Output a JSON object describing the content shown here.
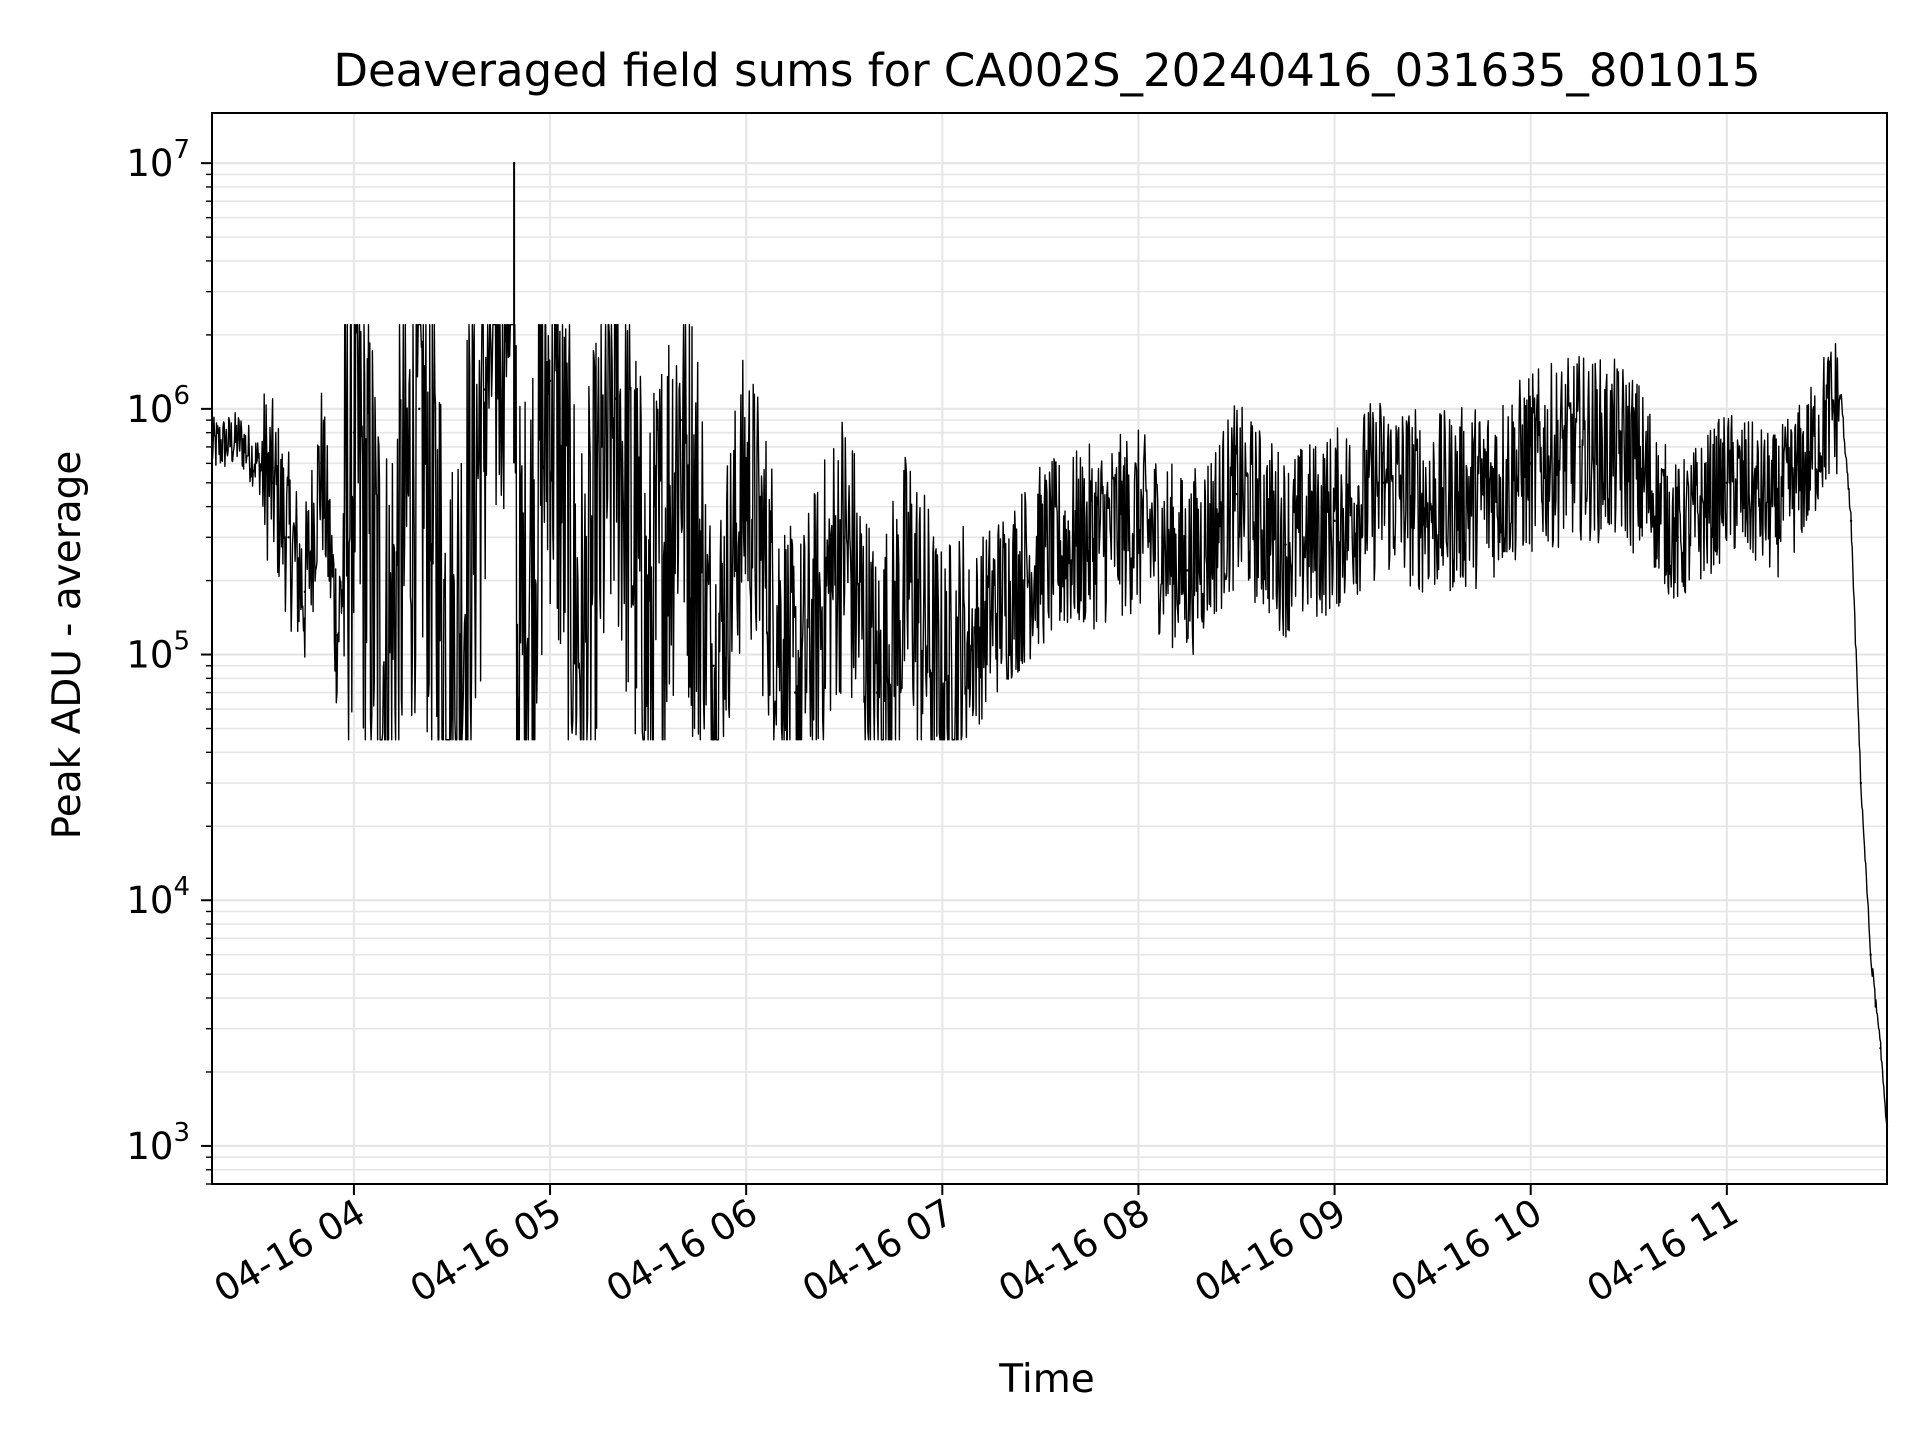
{
  "chart_data": {
    "type": "line",
    "title": "Deaveraged field sums for CA002S_20240416_031635_801015",
    "xlabel": "Time",
    "ylabel": "Peak ADU - average",
    "x_scale": "time",
    "y_scale": "log",
    "xlim": [
      "2024-04-16 03:16:35",
      "2024-04-16 11:49:00"
    ],
    "ylim": [
      700,
      16000000
    ],
    "x_ticks": [
      {
        "time": "2024-04-16 04:00:00",
        "label": "04-16 04"
      },
      {
        "time": "2024-04-16 05:00:00",
        "label": "04-16 05"
      },
      {
        "time": "2024-04-16 06:00:00",
        "label": "04-16 06"
      },
      {
        "time": "2024-04-16 07:00:00",
        "label": "04-16 07"
      },
      {
        "time": "2024-04-16 08:00:00",
        "label": "04-16 08"
      },
      {
        "time": "2024-04-16 09:00:00",
        "label": "04-16 09"
      },
      {
        "time": "2024-04-16 10:00:00",
        "label": "04-16 10"
      },
      {
        "time": "2024-04-16 11:00:00",
        "label": "04-16 11"
      }
    ],
    "y_ticks": [
      {
        "value": 1000,
        "base": "10",
        "exp": "3"
      },
      {
        "value": 10000,
        "base": "10",
        "exp": "4"
      },
      {
        "value": 100000,
        "base": "10",
        "exp": "5"
      },
      {
        "value": 1000000,
        "base": "10",
        "exp": "6"
      },
      {
        "value": 10000000,
        "base": "10",
        "exp": "7"
      }
    ],
    "grid": true,
    "grid_minor": true,
    "line_color": "#000000",
    "grid_color": "#e6e6e6",
    "series": [
      {
        "x": [
          "2024-04-16 03:16:35",
          "2024-04-16 03:25:00",
          "2024-04-16 03:35:00",
          "2024-04-16 03:40:00",
          "2024-04-16 03:45:00",
          "2024-04-16 03:50:00",
          "2024-04-16 03:55:00",
          "2024-04-16 04:00:00",
          "2024-04-16 04:10:00",
          "2024-04-16 04:20:00",
          "2024-04-16 04:30:00",
          "2024-04-16 04:40:00",
          "2024-04-16 04:49:00",
          "2024-04-16 04:50:00",
          "2024-04-16 05:00:00",
          "2024-04-16 05:10:00",
          "2024-04-16 05:20:00",
          "2024-04-16 05:30:00",
          "2024-04-16 05:40:00",
          "2024-04-16 05:50:00",
          "2024-04-16 06:00:00",
          "2024-04-16 06:15:00",
          "2024-04-16 06:30:00",
          "2024-04-16 06:40:00",
          "2024-04-16 06:50:00",
          "2024-04-16 07:00:00",
          "2024-04-16 07:15:00",
          "2024-04-16 07:30:00",
          "2024-04-16 07:45:00",
          "2024-04-16 08:00:00",
          "2024-04-16 08:15:00",
          "2024-04-16 08:30:00",
          "2024-04-16 08:45:00",
          "2024-04-16 09:00:00",
          "2024-04-16 09:15:00",
          "2024-04-16 09:30:00",
          "2024-04-16 09:45:00",
          "2024-04-16 10:00:00",
          "2024-04-16 10:15:00",
          "2024-04-16 10:30:00",
          "2024-04-16 10:45:00",
          "2024-04-16 11:00:00",
          "2024-04-16 11:15:00",
          "2024-04-16 11:25:00",
          "2024-04-16 11:30:00",
          "2024-04-16 11:35:00",
          "2024-04-16 11:38:00",
          "2024-04-16 11:41:00",
          "2024-04-16 11:44:00",
          "2024-04-16 11:47:00",
          "2024-04-16 11:49:00"
        ],
        "y": [
          700000,
          750000,
          500000,
          300000,
          180000,
          600000,
          120000,
          800000,
          80000,
          1000000,
          65000,
          1200000,
          10000000,
          80000,
          1300000,
          90000,
          1100000,
          100000,
          900000,
          90000,
          500000,
          70000,
          300000,
          70000,
          200000,
          70000,
          150000,
          250000,
          300000,
          350000,
          220000,
          450000,
          280000,
          350000,
          500000,
          400000,
          450000,
          600000,
          700000,
          650000,
          300000,
          500000,
          400000,
          600000,
          900000,
          1100000,
          350000,
          30000,
          6000,
          2500,
          1200
        ]
      }
    ]
  }
}
